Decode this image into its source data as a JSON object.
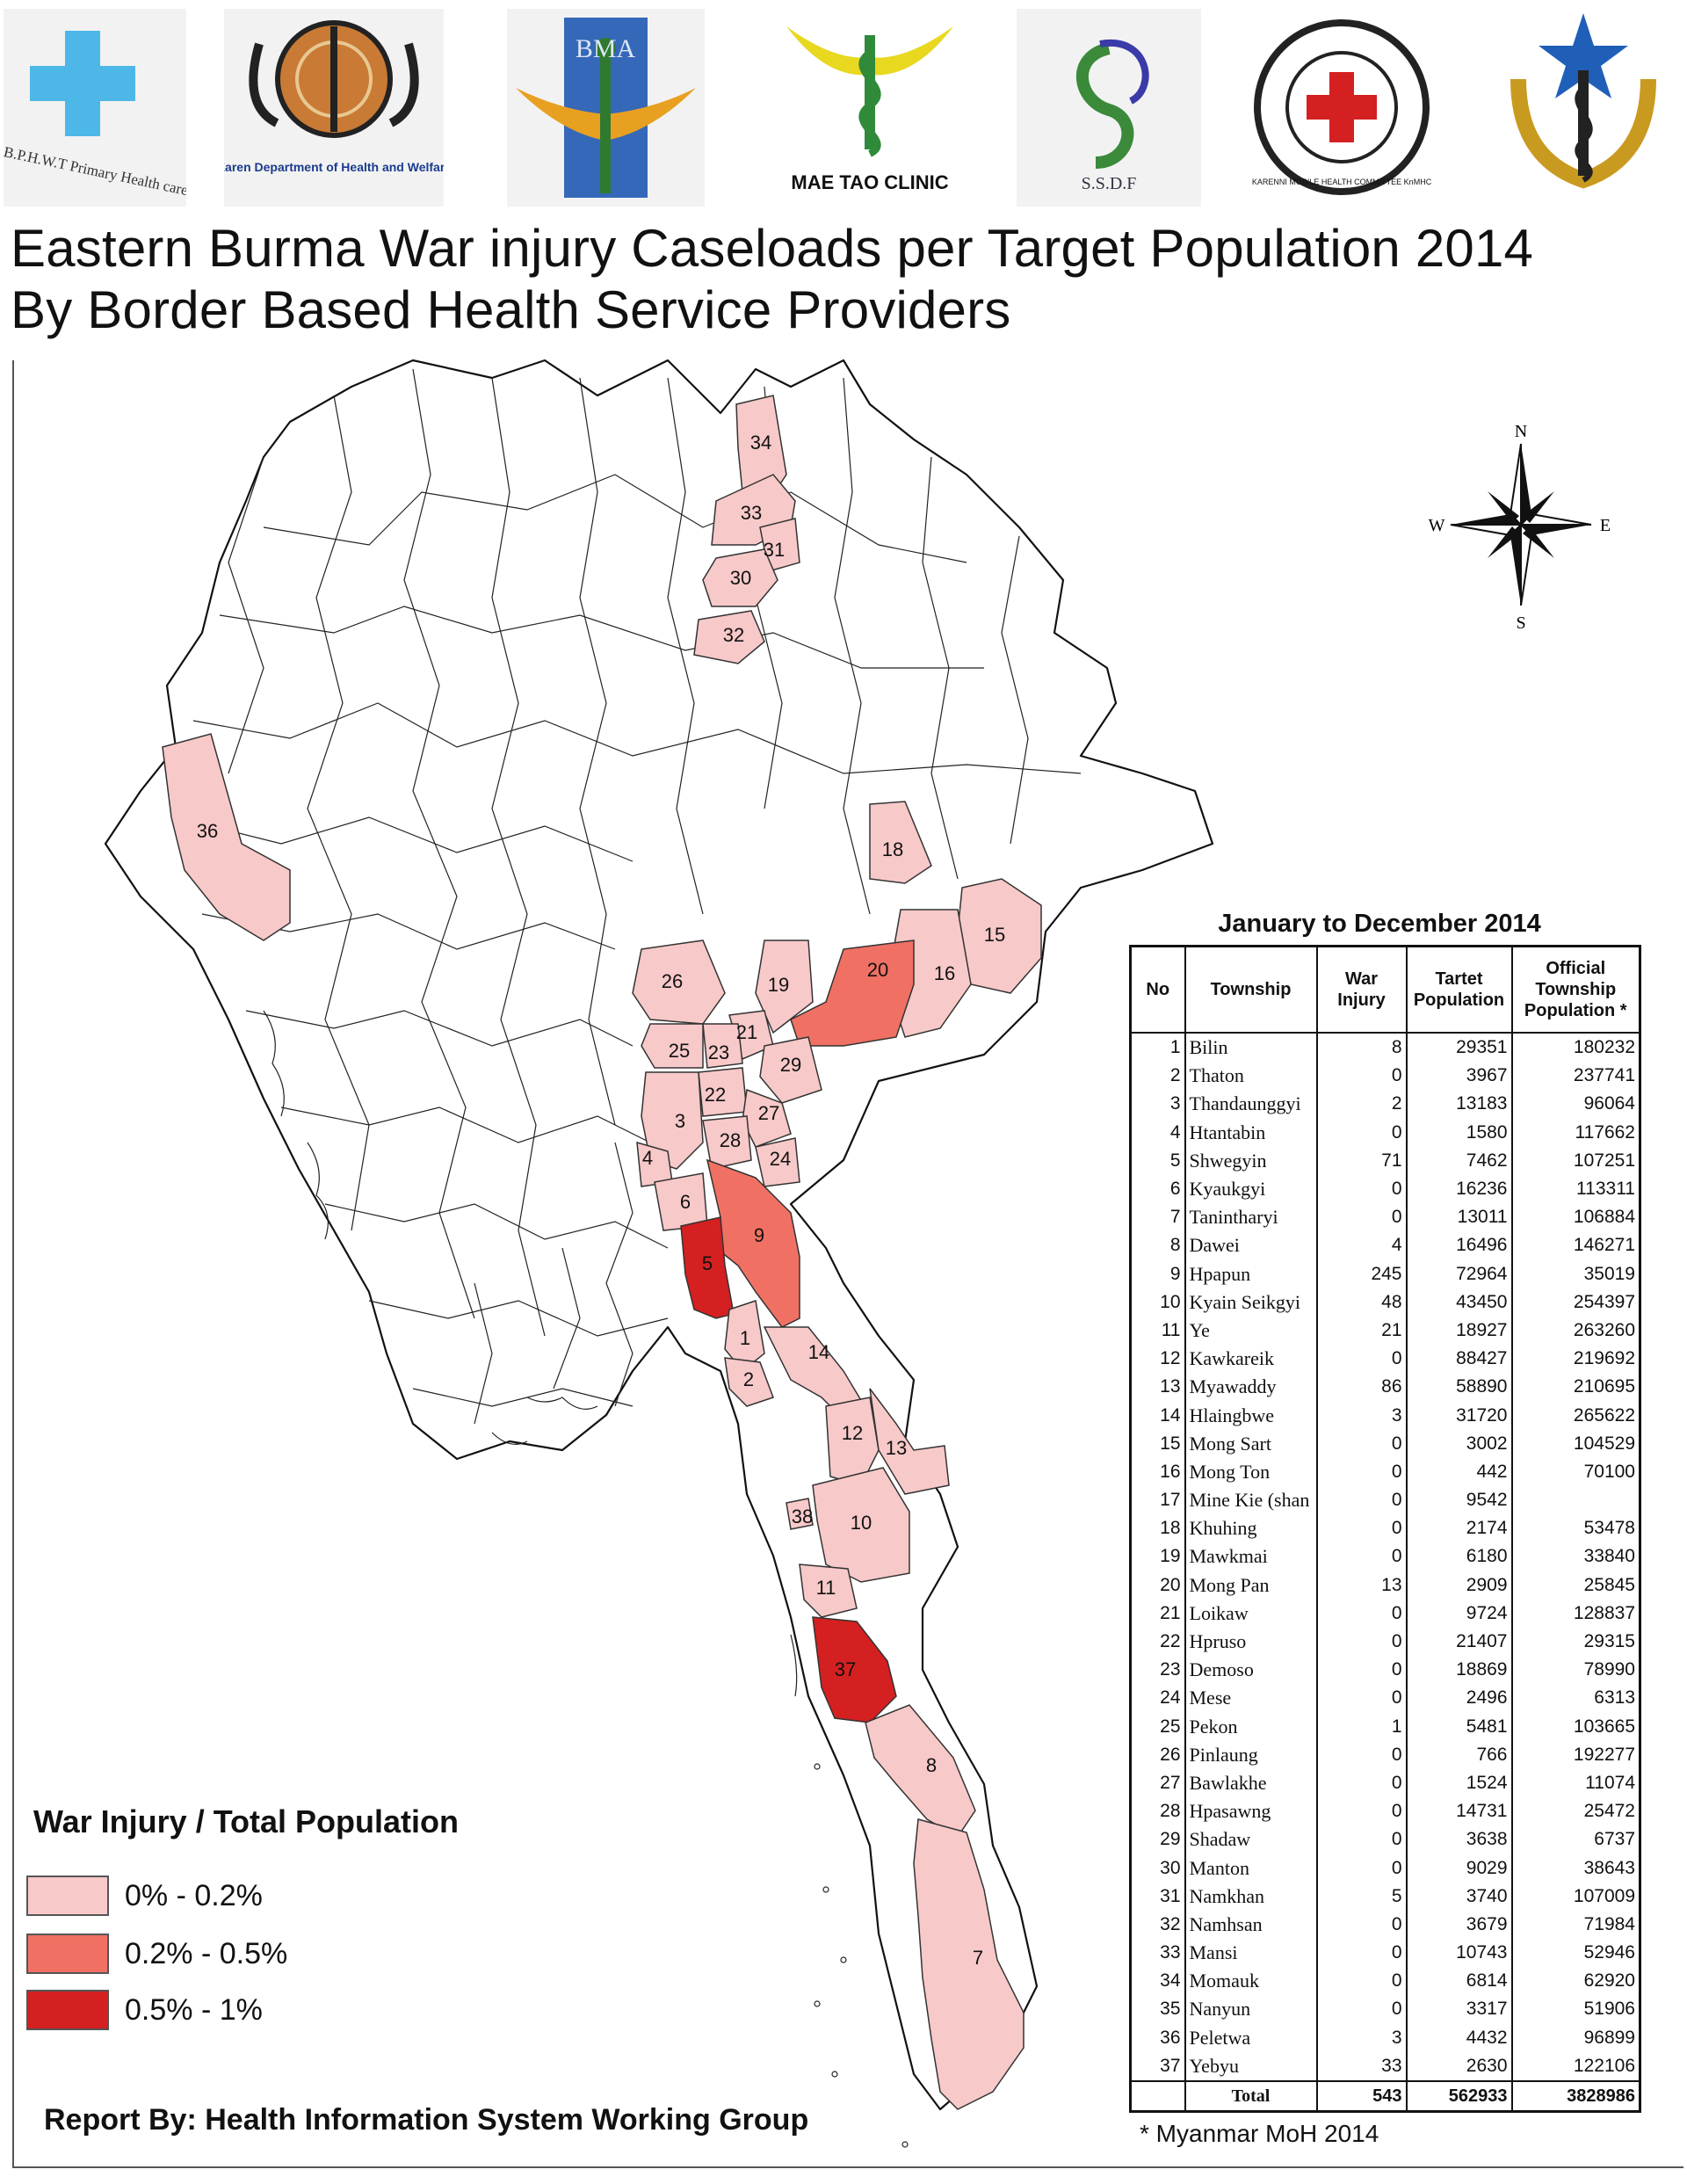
{
  "logos": [
    {
      "name": "bphwt-logo",
      "caption": "B.P.H.W.T Primary Health care"
    },
    {
      "name": "karen-department-logo",
      "caption": "Karen Department of Health and Welfare"
    },
    {
      "name": "bma-logo",
      "caption": "BMA"
    },
    {
      "name": "mae-tao-clinic-logo",
      "caption": "MAE TAO CLINIC"
    },
    {
      "name": "ssdf-logo",
      "caption": "S.S.D.F"
    },
    {
      "name": "kmhc-logo",
      "caption": "KARENNI MOBILE HEALTH COMMITTEE KnMHC"
    },
    {
      "name": "star-caduceus-logo",
      "caption": ""
    }
  ],
  "title": {
    "line1": "Eastern Burma War injury Caseloads per Target Population 2014",
    "line2": "By Border Based Health Service Providers"
  },
  "compass": {
    "n": "N",
    "s": "S",
    "e": "E",
    "w": "W"
  },
  "legend": {
    "title": "War Injury / Total Population",
    "items": [
      {
        "label": "0% - 0.2%",
        "color": "#f8c9c9"
      },
      {
        "label": "0.2% - 0.5%",
        "color": "#f07163"
      },
      {
        "label": "0.5% - 1%",
        "color": "#d42020"
      }
    ]
  },
  "credit": "Report  By: Health Information System Working Group",
  "table": {
    "title": "January to December 2014",
    "headers": {
      "no": "No",
      "township": "Township",
      "war_injury": "War Injury",
      "target_population": "Tartet Population",
      "official_population": "Official Township Population *"
    },
    "rows": [
      {
        "no": "1",
        "township": "Bilin",
        "war_injury": "8",
        "target_population": "29351",
        "official_population": "180232"
      },
      {
        "no": "2",
        "township": "Thaton",
        "war_injury": "0",
        "target_population": "3967",
        "official_population": "237741"
      },
      {
        "no": "3",
        "township": "Thandaunggyi",
        "war_injury": "2",
        "target_population": "13183",
        "official_population": "96064"
      },
      {
        "no": "4",
        "township": "Htantabin",
        "war_injury": "0",
        "target_population": "1580",
        "official_population": "117662"
      },
      {
        "no": "5",
        "township": "Shwegyin",
        "war_injury": "71",
        "target_population": "7462",
        "official_population": "107251"
      },
      {
        "no": "6",
        "township": "Kyaukgyi",
        "war_injury": "0",
        "target_population": "16236",
        "official_population": "113311"
      },
      {
        "no": "7",
        "township": "Tanintharyi",
        "war_injury": "0",
        "target_population": "13011",
        "official_population": "106884"
      },
      {
        "no": "8",
        "township": "Dawei",
        "war_injury": "4",
        "target_population": "16496",
        "official_population": "146271"
      },
      {
        "no": "9",
        "township": "Hpapun",
        "war_injury": "245",
        "target_population": "72964",
        "official_population": "35019"
      },
      {
        "no": "10",
        "township": "Kyain Seikgyi",
        "war_injury": "48",
        "target_population": "43450",
        "official_population": "254397"
      },
      {
        "no": "11",
        "township": "Ye",
        "war_injury": "21",
        "target_population": "18927",
        "official_population": "263260"
      },
      {
        "no": "12",
        "township": "Kawkareik",
        "war_injury": "0",
        "target_population": "88427",
        "official_population": "219692"
      },
      {
        "no": "13",
        "township": "Myawaddy",
        "war_injury": "86",
        "target_population": "58890",
        "official_population": "210695"
      },
      {
        "no": "14",
        "township": "Hlaingbwe",
        "war_injury": "3",
        "target_population": "31720",
        "official_population": "265622"
      },
      {
        "no": "15",
        "township": "Mong Sart",
        "war_injury": "0",
        "target_population": "3002",
        "official_population": "104529"
      },
      {
        "no": "16",
        "township": "Mong Ton",
        "war_injury": "0",
        "target_population": "442",
        "official_population": "70100"
      },
      {
        "no": "17",
        "township": "Mine Kie (shan",
        "war_injury": "0",
        "target_population": "9542",
        "official_population": ""
      },
      {
        "no": "18",
        "township": "Khuhing",
        "war_injury": "0",
        "target_population": "2174",
        "official_population": "53478"
      },
      {
        "no": "19",
        "township": "Mawkmai",
        "war_injury": "0",
        "target_population": "6180",
        "official_population": "33840"
      },
      {
        "no": "20",
        "township": "Mong Pan",
        "war_injury": "13",
        "target_population": "2909",
        "official_population": "25845"
      },
      {
        "no": "21",
        "township": "Loikaw",
        "war_injury": "0",
        "target_population": "9724",
        "official_population": "128837"
      },
      {
        "no": "22",
        "township": "Hpruso",
        "war_injury": "0",
        "target_population": "21407",
        "official_population": "29315"
      },
      {
        "no": "23",
        "township": "Demoso",
        "war_injury": "0",
        "target_population": "18869",
        "official_population": "78990"
      },
      {
        "no": "24",
        "township": "Mese",
        "war_injury": "0",
        "target_population": "2496",
        "official_population": "6313"
      },
      {
        "no": "25",
        "township": "Pekon",
        "war_injury": "1",
        "target_population": "5481",
        "official_population": "103665"
      },
      {
        "no": "26",
        "township": "Pinlaung",
        "war_injury": "0",
        "target_population": "766",
        "official_population": "192277"
      },
      {
        "no": "27",
        "township": "Bawlakhe",
        "war_injury": "0",
        "target_population": "1524",
        "official_population": "11074"
      },
      {
        "no": "28",
        "township": "Hpasawng",
        "war_injury": "0",
        "target_population": "14731",
        "official_population": "25472"
      },
      {
        "no": "29",
        "township": "Shadaw",
        "war_injury": "0",
        "target_population": "3638",
        "official_population": "6737"
      },
      {
        "no": "30",
        "township": "Manton",
        "war_injury": "0",
        "target_population": "9029",
        "official_population": "38643"
      },
      {
        "no": "31",
        "township": "Namkhan",
        "war_injury": "5",
        "target_population": "3740",
        "official_population": "107009"
      },
      {
        "no": "32",
        "township": "Namhsan",
        "war_injury": "0",
        "target_population": "3679",
        "official_population": "71984"
      },
      {
        "no": "33",
        "township": "Mansi",
        "war_injury": "0",
        "target_population": "10743",
        "official_population": "52946"
      },
      {
        "no": "34",
        "township": "Momauk",
        "war_injury": "0",
        "target_population": "6814",
        "official_population": "62920"
      },
      {
        "no": "35",
        "township": "Nanyun",
        "war_injury": "0",
        "target_population": "3317",
        "official_population": "51906"
      },
      {
        "no": "36",
        "township": "Peletwa",
        "war_injury": "3",
        "target_population": "4432",
        "official_population": "96899"
      },
      {
        "no": "37",
        "township": "Yebyu",
        "war_injury": "33",
        "target_population": "2630",
        "official_population": "122106"
      }
    ],
    "total": {
      "label": "Total",
      "war_injury": "543",
      "target_population": "562933",
      "official_population": "3828986"
    },
    "note": "* Myanmar MoH 2014"
  },
  "map_regions": [
    {
      "id": "1",
      "fill": "#f8c9c9"
    },
    {
      "id": "2",
      "fill": "#f8c9c9"
    },
    {
      "id": "3",
      "fill": "#f8c9c9"
    },
    {
      "id": "4",
      "fill": "#f8c9c9"
    },
    {
      "id": "5",
      "fill": "#d42020"
    },
    {
      "id": "6",
      "fill": "#f8c9c9"
    },
    {
      "id": "7",
      "fill": "#f8c9c9"
    },
    {
      "id": "8",
      "fill": "#f8c9c9"
    },
    {
      "id": "9",
      "fill": "#f07163"
    },
    {
      "id": "10",
      "fill": "#f8c9c9"
    },
    {
      "id": "11",
      "fill": "#f8c9c9"
    },
    {
      "id": "12",
      "fill": "#f8c9c9"
    },
    {
      "id": "13",
      "fill": "#f8c9c9"
    },
    {
      "id": "14",
      "fill": "#f8c9c9"
    },
    {
      "id": "15",
      "fill": "#f8c9c9"
    },
    {
      "id": "16",
      "fill": "#f8c9c9"
    },
    {
      "id": "18",
      "fill": "#f8c9c9"
    },
    {
      "id": "19",
      "fill": "#f8c9c9"
    },
    {
      "id": "20",
      "fill": "#f07163"
    },
    {
      "id": "21",
      "fill": "#f8c9c9"
    },
    {
      "id": "22",
      "fill": "#f8c9c9"
    },
    {
      "id": "23",
      "fill": "#f8c9c9"
    },
    {
      "id": "24",
      "fill": "#f8c9c9"
    },
    {
      "id": "25",
      "fill": "#f8c9c9"
    },
    {
      "id": "26",
      "fill": "#f8c9c9"
    },
    {
      "id": "27",
      "fill": "#f8c9c9"
    },
    {
      "id": "28",
      "fill": "#f8c9c9"
    },
    {
      "id": "29",
      "fill": "#f8c9c9"
    },
    {
      "id": "30",
      "fill": "#f8c9c9"
    },
    {
      "id": "31",
      "fill": "#f8c9c9"
    },
    {
      "id": "32",
      "fill": "#f8c9c9"
    },
    {
      "id": "33",
      "fill": "#f8c9c9"
    },
    {
      "id": "34",
      "fill": "#f8c9c9"
    },
    {
      "id": "36",
      "fill": "#f8c9c9"
    },
    {
      "id": "37",
      "fill": "#d42020"
    },
    {
      "id": "38",
      "fill": "#f8c9c9"
    }
  ]
}
